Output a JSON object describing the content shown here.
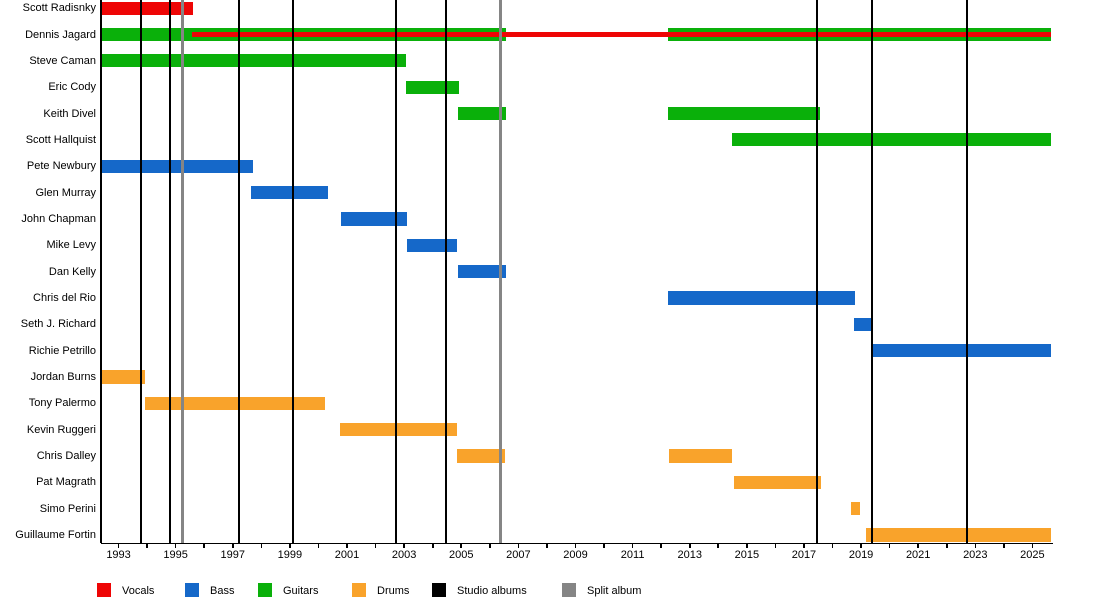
{
  "chart_data": {
    "type": "bar",
    "subtype": "band-members-timeline-gantt",
    "title": "",
    "axis": {
      "start": 1992.42,
      "end": 2025.65,
      "label_years": [
        1993,
        1995,
        1997,
        1999,
        2001,
        2003,
        2005,
        2007,
        2009,
        2011,
        2013,
        2015,
        2017,
        2019,
        2021,
        2023,
        2025
      ],
      "minor_tick_every_years": 1,
      "grid": false,
      "legend_position": "bottom"
    },
    "colors": {
      "vocals": "#EE0505",
      "bass": "#1568C9",
      "guitars": "#0AB00A",
      "drums": "#F9A32B",
      "studio_album": "#000000",
      "split_album": "#858585"
    },
    "legend": [
      {
        "label": "Vocals",
        "color_key": "vocals"
      },
      {
        "label": "Bass",
        "color_key": "bass"
      },
      {
        "label": "Guitars",
        "color_key": "guitars"
      },
      {
        "label": "Drums",
        "color_key": "drums"
      },
      {
        "label": "Studio albums",
        "color_key": "studio_album"
      },
      {
        "label": "Split album",
        "color_key": "split_album"
      }
    ],
    "members": [
      {
        "name": "Scott Radisnky",
        "bars": [
          {
            "role": "vocals",
            "from": 1992.42,
            "to": 1995.61
          }
        ]
      },
      {
        "name": "Dennis Jagard",
        "bars": [
          {
            "role": "guitars",
            "from": 1992.42,
            "to": 2006.56
          },
          {
            "role": "guitars",
            "from": 2012.24,
            "to": 2025.65
          }
        ],
        "overlay_line": [
          {
            "role": "vocals",
            "from": 1995.57,
            "to": 2025.65
          }
        ]
      },
      {
        "name": "Steve Caman",
        "bars": [
          {
            "role": "guitars",
            "from": 1992.42,
            "to": 2003.06
          }
        ]
      },
      {
        "name": "Eric Cody",
        "bars": [
          {
            "role": "guitars",
            "from": 2003.06,
            "to": 2004.92
          }
        ]
      },
      {
        "name": "Keith Divel",
        "bars": [
          {
            "role": "guitars",
            "from": 2004.88,
            "to": 2006.56
          },
          {
            "role": "guitars",
            "from": 2012.24,
            "to": 2017.56
          }
        ]
      },
      {
        "name": "Scott Hallquist",
        "bars": [
          {
            "role": "guitars",
            "from": 2014.48,
            "to": 2025.65
          }
        ]
      },
      {
        "name": "Pete Newbury",
        "bars": [
          {
            "role": "bass",
            "from": 1992.42,
            "to": 1997.71
          }
        ]
      },
      {
        "name": "Glen Murray",
        "bars": [
          {
            "role": "bass",
            "from": 1997.64,
            "to": 2000.33
          }
        ]
      },
      {
        "name": "John Chapman",
        "bars": [
          {
            "role": "bass",
            "from": 2000.79,
            "to": 2003.1
          }
        ]
      },
      {
        "name": "Mike Levy",
        "bars": [
          {
            "role": "bass",
            "from": 2003.1,
            "to": 2004.85
          }
        ]
      },
      {
        "name": "Dan Kelly",
        "bars": [
          {
            "role": "bass",
            "from": 2004.88,
            "to": 2006.56
          }
        ]
      },
      {
        "name": "Chris del Rio",
        "bars": [
          {
            "role": "bass",
            "from": 2012.24,
            "to": 2018.78
          }
        ]
      },
      {
        "name": "Seth J. Richard",
        "bars": [
          {
            "role": "bass",
            "from": 2018.75,
            "to": 2019.34
          }
        ]
      },
      {
        "name": "Richie Petrillo",
        "bars": [
          {
            "role": "bass",
            "from": 2019.34,
            "to": 2025.65
          }
        ]
      },
      {
        "name": "Jordan Burns",
        "bars": [
          {
            "role": "drums",
            "from": 1992.42,
            "to": 1993.93
          }
        ]
      },
      {
        "name": "Tony Palermo",
        "bars": [
          {
            "role": "drums",
            "from": 1993.93,
            "to": 2000.23
          }
        ]
      },
      {
        "name": "Kevin Ruggeri",
        "bars": [
          {
            "role": "drums",
            "from": 2000.75,
            "to": 2004.85
          }
        ]
      },
      {
        "name": "Chris Dalley",
        "bars": [
          {
            "role": "drums",
            "from": 2004.85,
            "to": 2006.53
          },
          {
            "role": "drums",
            "from": 2012.27,
            "to": 2014.48
          }
        ]
      },
      {
        "name": "Pat Magrath",
        "bars": [
          {
            "role": "drums",
            "from": 2014.55,
            "to": 2017.59
          }
        ]
      },
      {
        "name": "Simo Perini",
        "bars": [
          {
            "role": "drums",
            "from": 2018.64,
            "to": 2018.96
          }
        ]
      },
      {
        "name": "Guillaume Fortin",
        "bars": [
          {
            "role": "drums",
            "from": 2019.17,
            "to": 2025.65
          }
        ]
      }
    ],
    "events": {
      "studio_albums_years": [
        1993.77,
        1994.8,
        1997.22,
        1999.11,
        2002.73,
        2004.45,
        2017.44,
        2019.38,
        2022.72
      ],
      "split_album_years": [
        1995.24,
        2006.39
      ]
    }
  }
}
